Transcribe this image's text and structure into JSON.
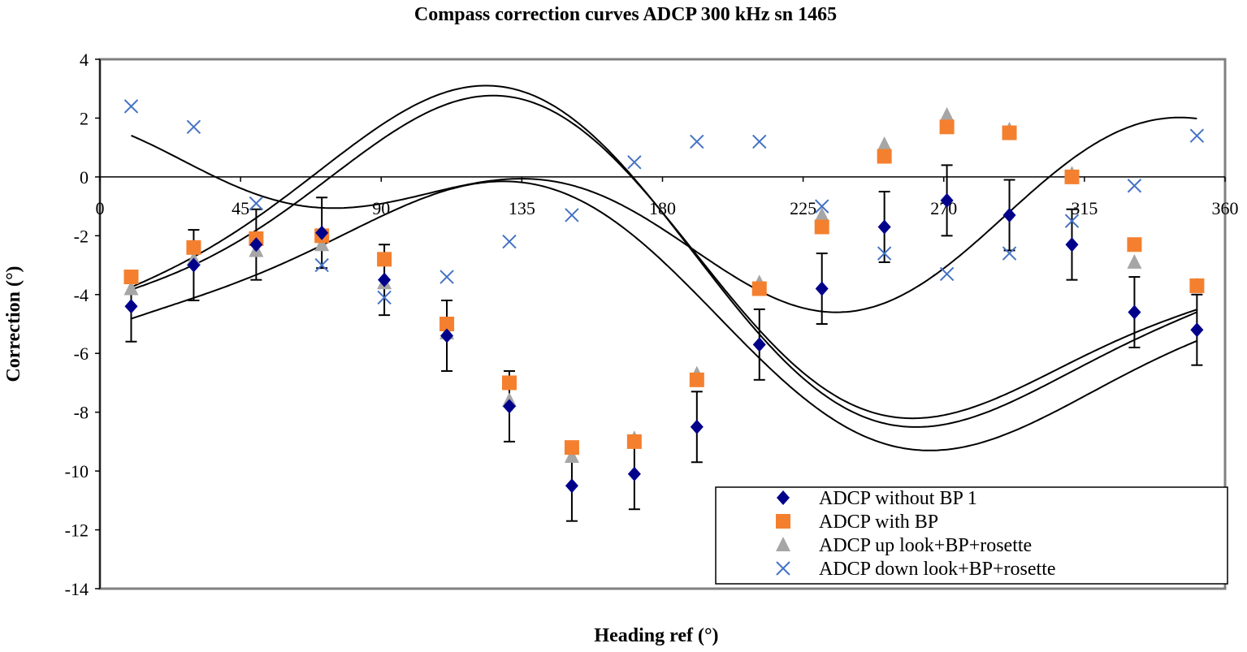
{
  "chart_data": {
    "type": "scatter",
    "title": "Compass correction curves ADCP 300 kHz sn 1465",
    "xlabel": "Heading ref (°)",
    "ylabel": "Correction (°)",
    "xlim": [
      0,
      360
    ],
    "ylim": [
      -14,
      4
    ],
    "x_ticks": [
      0,
      45,
      90,
      135,
      180,
      225,
      270,
      315,
      360
    ],
    "y_ticks": [
      4,
      2,
      0,
      -2,
      -4,
      -6,
      -8,
      -10,
      -12,
      -14
    ],
    "x_tick_labels": [
      "0",
      "45",
      "90",
      "135",
      "180",
      "225",
      "270",
      "315",
      "360"
    ],
    "y_tick_labels": [
      "4",
      "2",
      "0",
      "-2",
      "-4",
      "-6",
      "-8",
      "-10",
      "-12",
      "-14"
    ],
    "legend_position": "bottom-right",
    "error_bar": 1.2,
    "series": [
      {
        "name": "ADCP without BP 1",
        "marker": "diamond",
        "color": "#00008B",
        "x": [
          10,
          30,
          50,
          71,
          91,
          111,
          131,
          151,
          171,
          191,
          211,
          231,
          251,
          271,
          291,
          311,
          331,
          351
        ],
        "y": [
          -4.4,
          -3.0,
          -2.3,
          -1.9,
          -3.5,
          -5.4,
          -7.8,
          -10.5,
          -10.1,
          -8.5,
          -5.7,
          -3.8,
          -1.7,
          -0.8,
          -1.3,
          -2.3,
          -4.6,
          -5.2
        ],
        "error_bars": true,
        "fit": [
          -4.67,
          -1.17,
          3.97,
          0.64,
          -0.85
        ]
      },
      {
        "name": "ADCP with BP",
        "marker": "square",
        "color": "#F4802F",
        "x": [
          10,
          30,
          50,
          71,
          91,
          111,
          131,
          151,
          171,
          191,
          211,
          231,
          251,
          271,
          291,
          311,
          331,
          351
        ],
        "y": [
          -3.4,
          -2.4,
          -2.1,
          -2.0,
          -2.8,
          -5.0,
          -7.0,
          -9.2,
          -9.0,
          -6.9,
          -3.8,
          -1.7,
          0.7,
          1.7,
          1.5,
          0.0,
          -2.3,
          -3.7
        ],
        "error_bars": false,
        "fit": [
          -3.06,
          -1.49,
          4.68,
          0.36,
          -1.34
        ]
      },
      {
        "name": "ADCP up look+BP+rosette",
        "marker": "triangle",
        "color": "#A6A6A6",
        "x": [
          10,
          30,
          50,
          71,
          91,
          111,
          131,
          151,
          171,
          191,
          211,
          231,
          251,
          271,
          291,
          311,
          331,
          351
        ],
        "y": [
          -3.8,
          -2.8,
          -2.5,
          -2.3,
          -3.6,
          -5.3,
          -7.6,
          -9.5,
          -8.9,
          -6.7,
          -3.6,
          -1.3,
          1.1,
          2.1,
          1.6,
          0.1,
          -2.9,
          -3.7
        ],
        "error_bars": false,
        "fit": [
          -3.02,
          -1.49,
          5.09,
          0.31,
          -1.28
        ]
      },
      {
        "name": "ADCP down look+BP+rosette",
        "marker": "x",
        "color": "#4472C4",
        "x": [
          10,
          30,
          50,
          71,
          91,
          111,
          131,
          151,
          171,
          191,
          211,
          231,
          251,
          271,
          291,
          311,
          331,
          351
        ],
        "y": [
          2.4,
          1.7,
          -0.9,
          -3.0,
          -4.1,
          -3.4,
          -2.2,
          -1.3,
          0.5,
          1.2,
          1.2,
          -1.0,
          -2.6,
          -3.3,
          -2.6,
          -1.5,
          -0.3,
          1.4
        ],
        "error_bars": false,
        "fit": [
          -1.0,
          1.78,
          1.1,
          1.01,
          -1.42
        ]
      }
    ]
  }
}
